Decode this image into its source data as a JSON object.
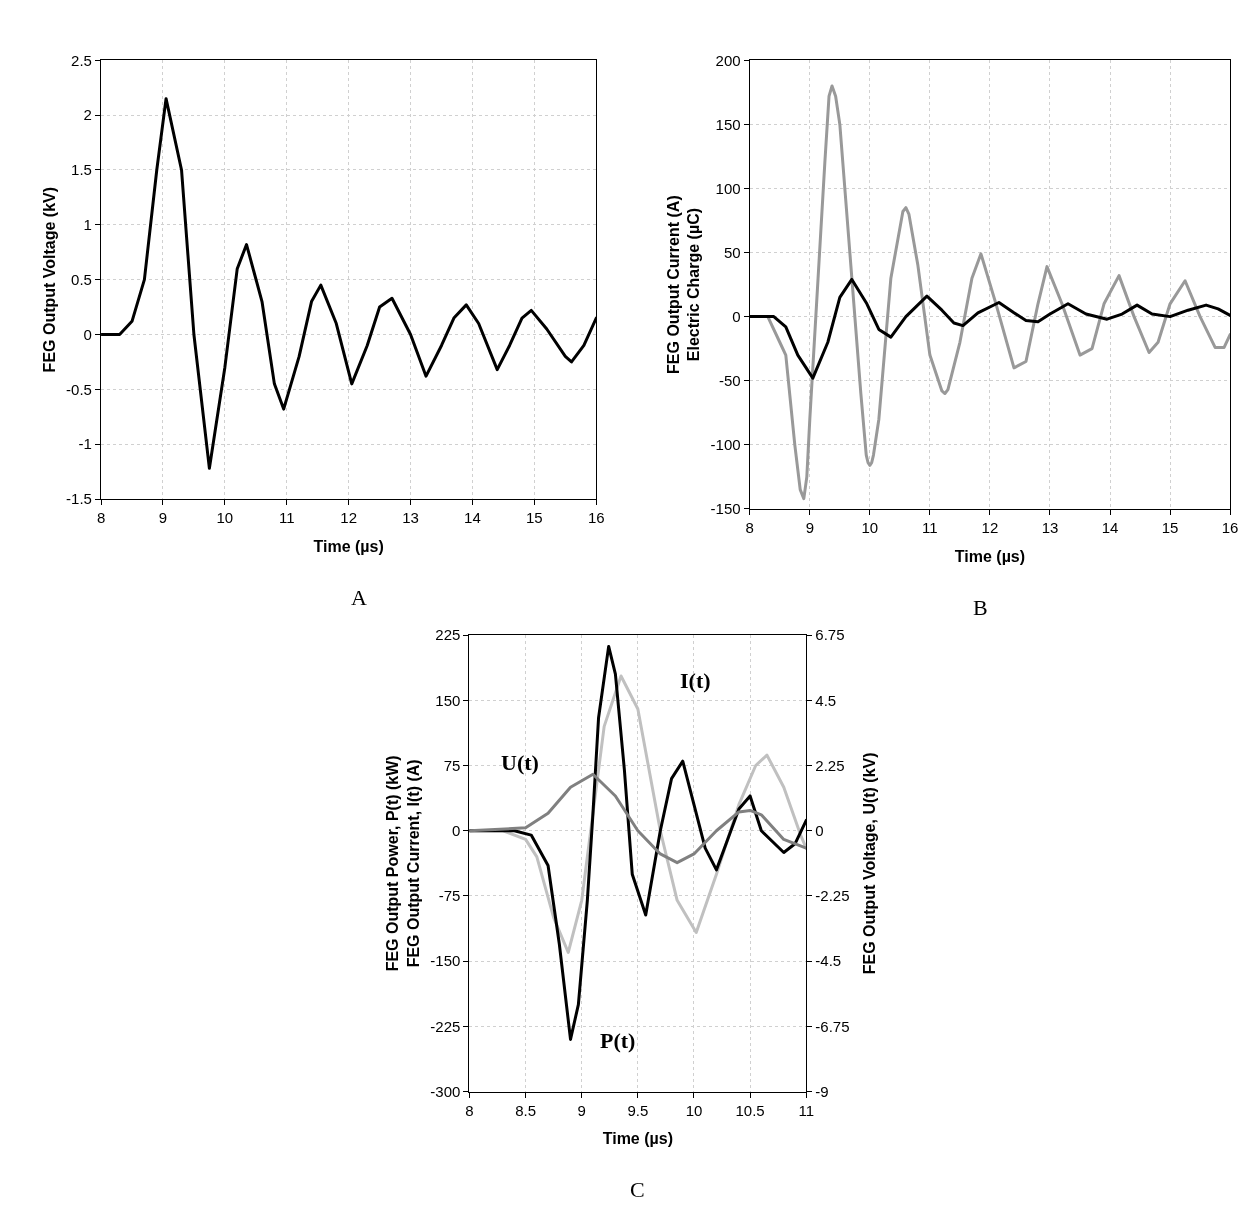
{
  "chart_data": [
    {
      "type": "line",
      "xlabel": "Time (µs)",
      "ylabel": "FEG Output Voltage (kV)",
      "annotations": [
        "A"
      ],
      "xlim": [
        8,
        16
      ],
      "xticks": [
        8,
        9,
        10,
        11,
        12,
        13,
        14,
        15,
        16
      ],
      "ylim": [
        -1.5,
        2.5
      ],
      "yticks": [
        -1.5,
        -1,
        -0.5,
        0,
        0.5,
        1,
        1.5,
        2,
        2.5
      ],
      "grid": true,
      "series": [
        {
          "color": "#000000",
          "x": [
            8,
            8.3,
            8.5,
            8.7,
            8.9,
            9.05,
            9.3,
            9.5,
            9.75,
            10.0,
            10.2,
            10.35,
            10.6,
            10.8,
            10.95,
            11.2,
            11.4,
            11.55,
            11.8,
            12.05,
            12.3,
            12.5,
            12.7,
            13.0,
            13.25,
            13.5,
            13.7,
            13.9,
            14.1,
            14.4,
            14.6,
            14.8,
            14.95,
            15.2,
            15.5,
            15.6,
            15.8,
            16
          ],
          "values": [
            0,
            0,
            0.12,
            0.5,
            1.5,
            2.15,
            1.5,
            0,
            -1.22,
            -0.3,
            0.6,
            0.82,
            0.3,
            -0.45,
            -0.68,
            -0.2,
            0.3,
            0.45,
            0.1,
            -0.45,
            -0.1,
            0.25,
            0.33,
            0,
            -0.38,
            -0.1,
            0.15,
            0.27,
            0.1,
            -0.32,
            -0.1,
            0.15,
            0.22,
            0.05,
            -0.2,
            -0.25,
            -0.1,
            0.15
          ]
        }
      ]
    },
    {
      "type": "line",
      "xlabel": "Time (µs)",
      "ylabel": "FEG Output Current (A)\nElectric Charge (µC)",
      "annotations": [
        "B"
      ],
      "xlim": [
        8,
        16
      ],
      "xticks": [
        8,
        9,
        10,
        11,
        12,
        13,
        14,
        15,
        16
      ],
      "ylim": [
        -150,
        200
      ],
      "yticks": [
        -150,
        -100,
        -50,
        0,
        50,
        100,
        150,
        200
      ],
      "grid": true,
      "series": [
        {
          "color": "#999999",
          "x": [
            8,
            8.3,
            8.5,
            8.6,
            8.75,
            8.84,
            8.9,
            8.95,
            9.0,
            9.1,
            9.25,
            9.32,
            9.37,
            9.43,
            9.5,
            9.7,
            9.85,
            9.94,
            9.97,
            10.0,
            10.03,
            10.06,
            10.15,
            10.35,
            10.55,
            10.6,
            10.65,
            10.8,
            11.0,
            11.2,
            11.25,
            11.3,
            11.5,
            11.7,
            11.85,
            12.1,
            12.4,
            12.6,
            12.8,
            12.95,
            13.2,
            13.5,
            13.7,
            13.9,
            14.15,
            14.4,
            14.65,
            14.8,
            15.0,
            15.25,
            15.5,
            15.75,
            15.9,
            16
          ],
          "values": [
            0,
            0,
            -20,
            -30,
            -100,
            -135,
            -142,
            -125,
            -80,
            0,
            120,
            172,
            180,
            172,
            150,
            30,
            -60,
            -108,
            -114,
            -116,
            -114,
            -108,
            -80,
            30,
            82,
            85,
            80,
            40,
            -30,
            -58,
            -60,
            -57,
            -20,
            30,
            49,
            10,
            -40,
            -35,
            10,
            39,
            10,
            -30,
            -25,
            10,
            32,
            0,
            -28,
            -20,
            10,
            28,
            0,
            -24,
            -24,
            -14
          ]
        },
        {
          "color": "#000000",
          "x": [
            8,
            8.4,
            8.6,
            8.8,
            9.05,
            9.3,
            9.5,
            9.7,
            9.95,
            10.15,
            10.35,
            10.6,
            10.95,
            11.2,
            11.4,
            11.55,
            11.8,
            12.15,
            12.4,
            12.6,
            12.8,
            13.0,
            13.3,
            13.6,
            13.95,
            14.2,
            14.45,
            14.7,
            15.0,
            15.3,
            15.6,
            15.8,
            16
          ],
          "values": [
            0,
            0,
            -8,
            -30,
            -48,
            -20,
            15,
            29,
            10,
            -10,
            -16,
            0,
            16,
            5,
            -5,
            -7,
            3,
            11,
            3,
            -3,
            -4,
            2,
            10,
            2,
            -2,
            2,
            9,
            2,
            0,
            5,
            9,
            6,
            1
          ]
        }
      ]
    },
    {
      "type": "line",
      "xlabel": "Time (µs)",
      "ylabel": "FEG Output Power, P(t) (kW)\nFEG Output Current, I(t) (A)",
      "y2label": "FEG Output Voltage, U(t) (kV)",
      "xlim": [
        8,
        11
      ],
      "xticks": [
        8,
        8.5,
        9,
        9.5,
        10,
        10.5,
        11
      ],
      "ylim": [
        -300,
        225
      ],
      "yticks": [
        -300,
        -225,
        -150,
        -75,
        0,
        75,
        150,
        225
      ],
      "y2lim": [
        -9,
        6.75
      ],
      "y2ticks": [
        -9,
        -6.75,
        -4.5,
        -2.25,
        0,
        2.25,
        4.5,
        6.75
      ],
      "grid": true,
      "annotations": [
        "U(t)",
        "I(t)",
        "P(t)",
        "C"
      ],
      "series": [
        {
          "color": "#c0c0c0",
          "x": [
            8,
            8.3,
            8.5,
            8.6,
            8.75,
            8.88,
            9.0,
            9.1,
            9.2,
            9.35,
            9.5,
            9.7,
            9.85,
            10.02,
            10.2,
            10.4,
            10.55,
            10.65,
            10.8,
            10.95,
            11
          ],
          "values": [
            0,
            0,
            -10,
            -30,
            -100,
            -140,
            -80,
            20,
            120,
            178,
            140,
            0,
            -80,
            -117,
            -50,
            30,
            75,
            87,
            50,
            -5,
            -20
          ]
        },
        {
          "color": "#808080",
          "axis": "y2",
          "x": [
            8,
            8.5,
            8.7,
            8.9,
            9.1,
            9.3,
            9.5,
            9.7,
            9.85,
            10.0,
            10.2,
            10.4,
            10.5,
            10.6,
            10.8,
            11
          ],
          "values": [
            0,
            0.1,
            0.6,
            1.5,
            1.95,
            1.2,
            0,
            -0.8,
            -1.1,
            -0.8,
            0,
            0.65,
            0.7,
            0.55,
            -0.3,
            -0.6
          ]
        },
        {
          "color": "#000000",
          "x": [
            8,
            8.4,
            8.55,
            8.7,
            8.8,
            8.9,
            8.97,
            9.05,
            9.1,
            9.15,
            9.24,
            9.3,
            9.38,
            9.45,
            9.57,
            9.7,
            9.8,
            9.9,
            10.0,
            10.1,
            10.2,
            10.3,
            10.4,
            10.5,
            10.6,
            10.8,
            10.9,
            11
          ],
          "values": [
            0,
            0,
            -5,
            -40,
            -130,
            -240,
            -200,
            -80,
            20,
            130,
            212,
            180,
            70,
            -50,
            -97,
            0,
            60,
            80,
            30,
            -20,
            -45,
            -10,
            25,
            40,
            0,
            -25,
            -15,
            12
          ]
        }
      ]
    }
  ]
}
